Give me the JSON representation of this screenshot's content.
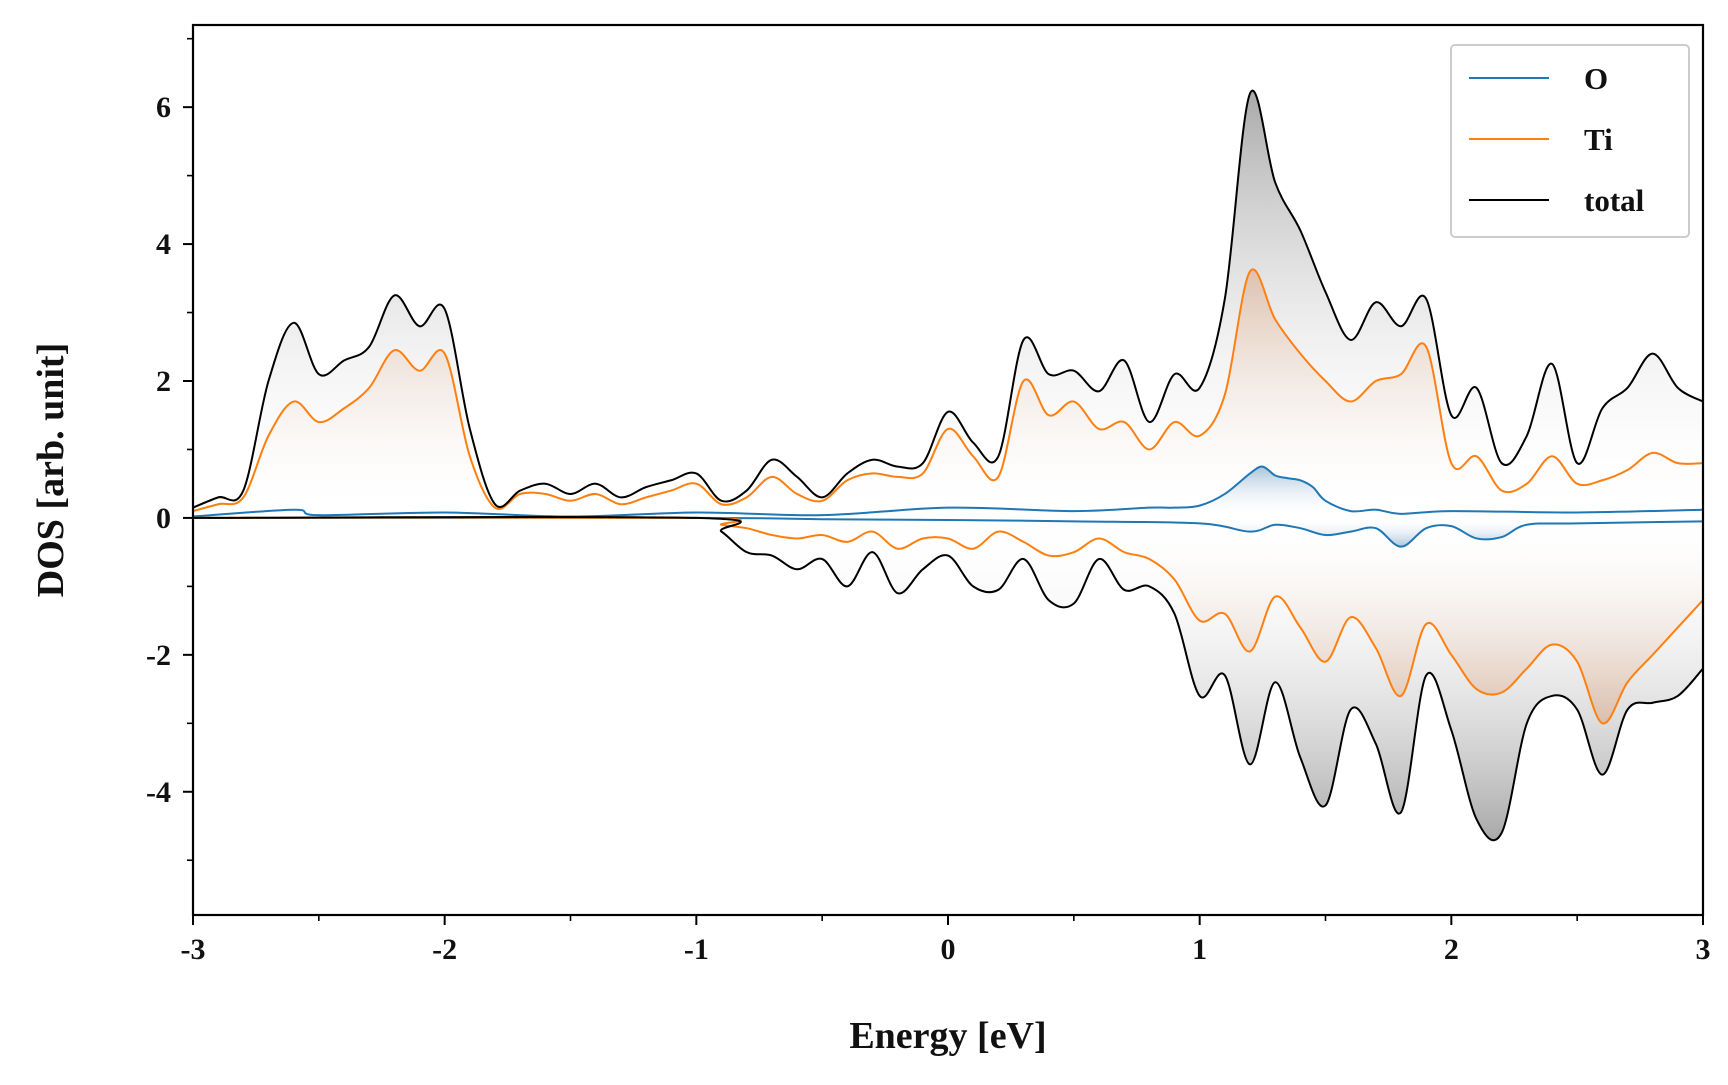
{
  "chart_data": {
    "type": "line",
    "xlabel": "Energy [eV]",
    "ylabel": "DOS [arb. unit]",
    "xlim": [
      -3,
      3
    ],
    "ylim": [
      -5.8,
      7.2
    ],
    "xticks": [
      -3,
      -2,
      -1,
      0,
      1,
      2,
      3
    ],
    "xtick_labels": [
      "-3",
      "-2",
      "-1",
      "0",
      "1",
      "2",
      "3"
    ],
    "yticks": [
      -4,
      -2,
      0,
      2,
      4,
      6
    ],
    "ytick_labels": [
      "-4",
      "-2",
      "0",
      "2",
      "4",
      "6"
    ],
    "grid": false,
    "legend_position": "top-right",
    "colors": {
      "O": "#1f77b4",
      "Ti": "#ff7f0e",
      "total": "#000000"
    },
    "legend": [
      "O",
      "Ti",
      "total"
    ],
    "series": [
      {
        "name": "O",
        "color": "#1f77b4",
        "up": {
          "x": [
            -3,
            -2.6,
            -2.5,
            -2,
            -1.5,
            -1,
            -0.5,
            0,
            0.5,
            0.8,
            0.9,
            1.0,
            1.1,
            1.2,
            1.25,
            1.3,
            1.35,
            1.4,
            1.45,
            1.5,
            1.6,
            1.7,
            1.8,
            2,
            2.5,
            3
          ],
          "y": [
            0.02,
            0.12,
            0.04,
            0.08,
            0.02,
            0.08,
            0.04,
            0.15,
            0.1,
            0.15,
            0.15,
            0.18,
            0.35,
            0.65,
            0.75,
            0.62,
            0.58,
            0.55,
            0.45,
            0.25,
            0.1,
            0.12,
            0.06,
            0.1,
            0.08,
            0.12
          ]
        },
        "down": {
          "x": [
            -3,
            -1,
            -0.5,
            0,
            0.5,
            1,
            1.2,
            1.3,
            1.4,
            1.5,
            1.6,
            1.7,
            1.8,
            1.9,
            2.0,
            2.1,
            2.2,
            2.3,
            2.5,
            3
          ],
          "y": [
            0,
            0,
            -0.02,
            -0.03,
            -0.05,
            -0.08,
            -0.2,
            -0.1,
            -0.15,
            -0.25,
            -0.2,
            -0.15,
            -0.42,
            -0.15,
            -0.12,
            -0.3,
            -0.28,
            -0.1,
            -0.08,
            -0.05
          ]
        }
      },
      {
        "name": "Ti",
        "color": "#ff7f0e",
        "up": {
          "x": [
            -3,
            -2.9,
            -2.8,
            -2.7,
            -2.6,
            -2.5,
            -2.4,
            -2.3,
            -2.2,
            -2.1,
            -2.0,
            -1.9,
            -1.8,
            -1.7,
            -1.6,
            -1.5,
            -1.4,
            -1.3,
            -1.2,
            -1.1,
            -1.0,
            -0.9,
            -0.8,
            -0.7,
            -0.6,
            -0.5,
            -0.4,
            -0.3,
            -0.2,
            -0.1,
            0.0,
            0.1,
            0.2,
            0.3,
            0.4,
            0.5,
            0.6,
            0.7,
            0.8,
            0.9,
            1.0,
            1.1,
            1.2,
            1.3,
            1.4,
            1.5,
            1.6,
            1.7,
            1.8,
            1.9,
            2.0,
            2.1,
            2.2,
            2.3,
            2.4,
            2.5,
            2.6,
            2.7,
            2.8,
            2.9,
            3.0
          ],
          "y": [
            0.1,
            0.2,
            0.3,
            1.2,
            1.7,
            1.4,
            1.6,
            1.9,
            2.45,
            2.15,
            2.4,
            0.9,
            0.15,
            0.35,
            0.35,
            0.25,
            0.35,
            0.2,
            0.3,
            0.4,
            0.5,
            0.2,
            0.3,
            0.6,
            0.35,
            0.25,
            0.55,
            0.65,
            0.6,
            0.65,
            1.3,
            0.9,
            0.6,
            2.0,
            1.5,
            1.7,
            1.3,
            1.4,
            1.0,
            1.4,
            1.2,
            1.8,
            3.6,
            2.9,
            2.4,
            2.0,
            1.7,
            2.0,
            2.1,
            2.5,
            0.8,
            0.9,
            0.4,
            0.5,
            0.9,
            0.5,
            0.55,
            0.7,
            0.95,
            0.8,
            0.8
          ]
        },
        "down": {
          "x": [
            -3,
            -1.0,
            -0.9,
            -0.8,
            -0.7,
            -0.6,
            -0.5,
            -0.4,
            -0.3,
            -0.2,
            -0.1,
            0.0,
            0.1,
            0.2,
            0.3,
            0.4,
            0.5,
            0.6,
            0.7,
            0.8,
            0.9,
            1.0,
            1.1,
            1.2,
            1.3,
            1.4,
            1.5,
            1.6,
            1.7,
            1.8,
            1.9,
            2.0,
            2.1,
            2.2,
            2.3,
            2.4,
            2.5,
            2.6,
            2.7,
            2.8,
            2.9,
            3.0
          ],
          "y": [
            0,
            0,
            -0.1,
            -0.15,
            -0.25,
            -0.3,
            -0.25,
            -0.35,
            -0.2,
            -0.45,
            -0.3,
            -0.3,
            -0.45,
            -0.2,
            -0.35,
            -0.55,
            -0.5,
            -0.3,
            -0.5,
            -0.6,
            -0.9,
            -1.5,
            -1.4,
            -1.95,
            -1.15,
            -1.6,
            -2.1,
            -1.45,
            -1.9,
            -2.6,
            -1.55,
            -2.0,
            -2.5,
            -2.55,
            -2.2,
            -1.85,
            -2.1,
            -3.0,
            -2.4,
            -2.0,
            -1.6,
            -1.2
          ]
        }
      },
      {
        "name": "total",
        "color": "#000000",
        "up": {
          "x": [
            -3,
            -2.9,
            -2.8,
            -2.7,
            -2.6,
            -2.5,
            -2.4,
            -2.3,
            -2.2,
            -2.1,
            -2.0,
            -1.9,
            -1.8,
            -1.7,
            -1.6,
            -1.5,
            -1.4,
            -1.3,
            -1.2,
            -1.1,
            -1.0,
            -0.9,
            -0.8,
            -0.7,
            -0.6,
            -0.5,
            -0.4,
            -0.3,
            -0.2,
            -0.1,
            0.0,
            0.1,
            0.2,
            0.3,
            0.4,
            0.5,
            0.6,
            0.7,
            0.8,
            0.9,
            1.0,
            1.1,
            1.2,
            1.3,
            1.4,
            1.5,
            1.6,
            1.7,
            1.8,
            1.9,
            2.0,
            2.1,
            2.2,
            2.3,
            2.4,
            2.5,
            2.6,
            2.7,
            2.8,
            2.9,
            3.0
          ],
          "y": [
            0.15,
            0.3,
            0.4,
            2.0,
            2.85,
            2.1,
            2.3,
            2.5,
            3.25,
            2.8,
            3.05,
            1.3,
            0.2,
            0.4,
            0.5,
            0.35,
            0.5,
            0.3,
            0.45,
            0.55,
            0.65,
            0.25,
            0.4,
            0.85,
            0.6,
            0.3,
            0.65,
            0.85,
            0.75,
            0.8,
            1.55,
            1.1,
            0.9,
            2.6,
            2.1,
            2.15,
            1.85,
            2.3,
            1.4,
            2.1,
            1.9,
            3.2,
            6.2,
            4.9,
            4.2,
            3.3,
            2.6,
            3.15,
            2.8,
            3.2,
            1.5,
            1.9,
            0.8,
            1.2,
            2.25,
            0.8,
            1.6,
            1.9,
            2.4,
            1.9,
            1.7
          ]
        },
        "down": {
          "x": [
            -3,
            -1.0,
            -0.9,
            -0.8,
            -0.7,
            -0.6,
            -0.5,
            -0.4,
            -0.3,
            -0.2,
            -0.1,
            0.0,
            0.1,
            0.2,
            0.3,
            0.4,
            0.5,
            0.6,
            0.7,
            0.8,
            0.9,
            1.0,
            1.1,
            1.2,
            1.3,
            1.4,
            1.5,
            1.6,
            1.7,
            1.8,
            1.9,
            2.0,
            2.1,
            2.2,
            2.3,
            2.4,
            2.5,
            2.6,
            2.7,
            2.8,
            2.9,
            3.0
          ],
          "y": [
            0,
            0,
            -0.2,
            -0.5,
            -0.55,
            -0.75,
            -0.6,
            -1.0,
            -0.5,
            -1.1,
            -0.75,
            -0.55,
            -1.0,
            -1.05,
            -0.6,
            -1.2,
            -1.25,
            -0.6,
            -1.05,
            -1.0,
            -1.4,
            -2.6,
            -2.3,
            -3.6,
            -2.4,
            -3.5,
            -4.2,
            -2.8,
            -3.3,
            -4.3,
            -2.3,
            -3.1,
            -4.4,
            -4.6,
            -3.0,
            -2.6,
            -2.8,
            -3.75,
            -2.8,
            -2.7,
            -2.6,
            -2.2
          ]
        }
      }
    ]
  }
}
